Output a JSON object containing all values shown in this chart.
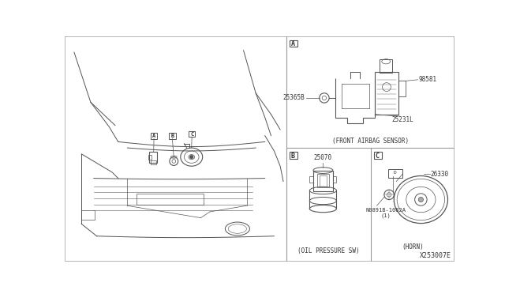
{
  "bg_color": "#ffffff",
  "line_color": "#555555",
  "text_color": "#333333",
  "divider_color": "#999999",
  "font_size_small": 5.5,
  "font_size_label": 5.8,
  "font_family": "monospace",
  "sections": {
    "A_label": "A",
    "B_label": "B",
    "C_label": "C",
    "A_caption": "(FRONT AIRBAG SENSOR)",
    "B_caption": "(OIL PRESSURE SW)",
    "C_caption": "(HORN)",
    "part_98581": "98581",
    "part_25365B": "25365B",
    "part_25231L": "25231L",
    "part_25070": "25070",
    "part_26330": "26330",
    "part_N0891B": "N0891B-1082A",
    "part_N0891B_qty": "(1)",
    "diagram_code": "X253007E"
  },
  "dividers": {
    "vertical_main": 365,
    "horizontal_mid": 185,
    "vertical_BC": 503
  }
}
